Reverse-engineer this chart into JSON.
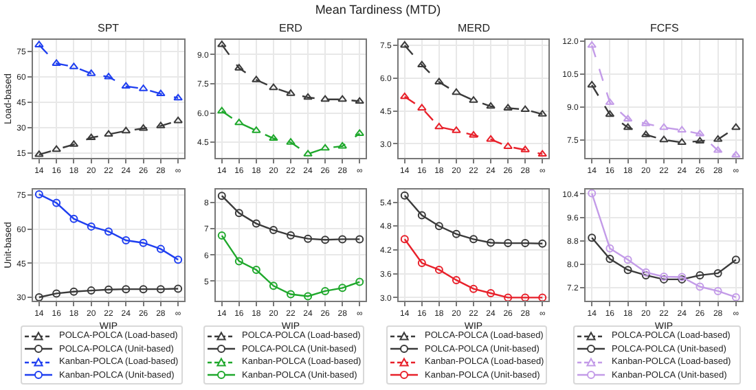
{
  "chart_data": [
    {
      "type": "line",
      "title": "SPT",
      "ylabel": "Load-based",
      "annotations": [
        "Mean Tardiness (MTD)"
      ],
      "categories": [
        "14",
        "16",
        "18",
        "20",
        "22",
        "24",
        "26",
        "28",
        "∞"
      ],
      "ylim": [
        12,
        82
      ],
      "yticks": [
        15,
        30,
        45,
        60,
        75
      ],
      "grid": true,
      "legend": "bottom",
      "series": [
        {
          "name": "POLCA-POLCA (Load-based)",
          "color": "#3a3a3a",
          "marker": "triangle",
          "line_style": "dashed",
          "values": [
            14,
            17,
            20,
            24,
            26,
            28,
            29.5,
            31,
            34
          ]
        },
        {
          "name": "Kanban-POLCA (Load-based)",
          "color": "#1f3ff0",
          "marker": "triangle",
          "line_style": "dashed",
          "values": [
            79,
            68,
            66,
            62,
            60,
            54.5,
            53,
            50,
            47.5
          ]
        }
      ]
    },
    {
      "type": "line",
      "title": "ERD",
      "categories": [
        "14",
        "16",
        "18",
        "20",
        "22",
        "24",
        "26",
        "28",
        "∞"
      ],
      "ylim": [
        3.7,
        9.75
      ],
      "yticks": [
        4.5,
        {
          "value": 6,
          "label": "6.0"
        },
        7.5,
        {
          "value": 9,
          "label": "9.0"
        }
      ],
      "grid": true,
      "legend": "bottom",
      "series": [
        {
          "name": "POLCA-POLCA (Load-based)",
          "color": "#3a3a3a",
          "marker": "triangle",
          "line_style": "dashed",
          "values": [
            9.5,
            8.3,
            7.7,
            7.3,
            7,
            6.8,
            6.7,
            6.7,
            6.6
          ]
        },
        {
          "name": "Kanban-POLCA (Load-based)",
          "color": "#1fa82c",
          "marker": "triangle",
          "line_style": "dashed",
          "values": [
            6.1,
            5.5,
            5.1,
            4.7,
            4.5,
            3.9,
            4.2,
            4.3,
            4.95
          ]
        }
      ]
    },
    {
      "type": "line",
      "title": "MERD",
      "categories": [
        "14",
        "16",
        "18",
        "20",
        "22",
        "24",
        "26",
        "28",
        "∞"
      ],
      "ylim": [
        2.35,
        7.75
      ],
      "yticks": [
        {
          "value": 3,
          "label": "3.0"
        },
        4.5,
        {
          "value": 6,
          "label": "6.0"
        },
        7.5
      ],
      "grid": true,
      "legend": "bottom",
      "series": [
        {
          "name": "POLCA-POLCA (Load-based)",
          "color": "#3a3a3a",
          "marker": "triangle",
          "line_style": "dashed",
          "values": [
            7.5,
            6.6,
            5.82,
            5.34,
            4.98,
            4.71,
            4.63,
            4.56,
            4.35
          ]
        },
        {
          "name": "Kanban-POLCA (Load-based)",
          "color": "#e8202a",
          "marker": "triangle",
          "line_style": "dashed",
          "values": [
            5.15,
            4.63,
            3.77,
            3.6,
            3.39,
            3.2,
            2.87,
            2.72,
            2.52
          ]
        }
      ]
    },
    {
      "type": "line",
      "title": "FCFS",
      "categories": [
        "14",
        "16",
        "18",
        "20",
        "22",
        "24",
        "26",
        "28",
        "∞"
      ],
      "ylim": [
        6.7,
        12.05
      ],
      "yticks": [
        7.5,
        {
          "value": 9,
          "label": "9.0"
        },
        10.5,
        {
          "value": 12,
          "label": "12.0"
        }
      ],
      "grid": true,
      "legend": "bottom",
      "series": [
        {
          "name": "POLCA-POLCA (Load-based)",
          "color": "#3a3a3a",
          "marker": "triangle",
          "line_style": "dashed",
          "values": [
            10,
            8.67,
            8.08,
            7.75,
            7.52,
            7.4,
            7.46,
            7.54,
            8.08
          ]
        },
        {
          "name": "Kanban-POLCA (Load-based)",
          "color": "#c39be8",
          "marker": "triangle",
          "line_style": "dashed",
          "values": [
            11.8,
            9.21,
            8.46,
            8.25,
            8.08,
            7.96,
            7.79,
            7.04,
            6.83
          ]
        }
      ]
    },
    {
      "type": "line",
      "xlabel": "WIP",
      "ylabel": "Unit-based",
      "categories": [
        "14",
        "16",
        "18",
        "20",
        "22",
        "24",
        "26",
        "28",
        "∞"
      ],
      "ylim": [
        28.5,
        77.5
      ],
      "yticks": [
        30,
        45,
        60,
        75
      ],
      "grid": true,
      "legend": "bottom",
      "series": [
        {
          "name": "POLCA-POLCA (Unit-based)",
          "color": "#3a3a3a",
          "marker": "circle",
          "line_style": "solid",
          "values": [
            30,
            31.7,
            32.5,
            33,
            33.4,
            33.6,
            33.6,
            33.6,
            33.8
          ]
        },
        {
          "name": "Kanban-POLCA (Unit-based)",
          "color": "#1f3ff0",
          "marker": "circle",
          "line_style": "solid",
          "values": [
            75.4,
            71.6,
            64.6,
            61.2,
            59,
            55.1,
            54,
            51.3,
            46.6
          ]
        }
      ]
    },
    {
      "type": "line",
      "xlabel": "WIP",
      "categories": [
        "14",
        "16",
        "18",
        "20",
        "22",
        "24",
        "26",
        "28",
        "∞"
      ],
      "ylim": [
        4.25,
        8.5
      ],
      "yticks": [
        5,
        6,
        7,
        8
      ],
      "grid": true,
      "legend": "bottom",
      "series": [
        {
          "name": "POLCA-POLCA (Unit-based)",
          "color": "#3a3a3a",
          "marker": "circle",
          "line_style": "solid",
          "values": [
            8.26,
            7.6,
            7.2,
            6.95,
            6.75,
            6.62,
            6.58,
            6.6,
            6.6
          ]
        },
        {
          "name": "Kanban-POLCA (Unit-based)",
          "color": "#1fa82c",
          "marker": "circle",
          "line_style": "solid",
          "values": [
            6.74,
            5.76,
            5.43,
            4.82,
            4.5,
            4.42,
            4.62,
            4.74,
            4.97
          ]
        }
      ]
    },
    {
      "type": "line",
      "xlabel": "WIP",
      "categories": [
        "14",
        "16",
        "18",
        "20",
        "22",
        "24",
        "26",
        "28",
        "∞"
      ],
      "ylim": [
        2.92,
        5.72
      ],
      "yticks": [
        {
          "value": 3,
          "label": "3.0"
        },
        3.6,
        4.2,
        4.8,
        5.4
      ],
      "grid": true,
      "legend": "bottom",
      "series": [
        {
          "name": "POLCA-POLCA (Unit-based)",
          "color": "#3a3a3a",
          "marker": "circle",
          "line_style": "solid",
          "values": [
            5.57,
            5.07,
            4.8,
            4.6,
            4.47,
            4.38,
            4.37,
            4.37,
            4.36
          ]
        },
        {
          "name": "Kanban-POLCA (Unit-based)",
          "color": "#e8202a",
          "marker": "circle",
          "line_style": "solid",
          "values": [
            4.47,
            3.87,
            3.7,
            3.44,
            3.22,
            3.11,
            3,
            3,
            3
          ]
        }
      ]
    },
    {
      "type": "line",
      "xlabel": "WIP",
      "categories": [
        "14",
        "16",
        "18",
        "20",
        "22",
        "24",
        "26",
        "28",
        "∞"
      ],
      "ylim": [
        6.75,
        10.55
      ],
      "yticks": [
        7.2,
        {
          "value": 8,
          "label": "8.0"
        },
        8.8,
        9.6,
        10.4
      ],
      "grid": true,
      "legend": "bottom",
      "series": [
        {
          "name": "POLCA-POLCA (Unit-based)",
          "color": "#3a3a3a",
          "marker": "circle",
          "line_style": "solid",
          "values": [
            8.9,
            8.18,
            7.8,
            7.62,
            7.48,
            7.48,
            7.62,
            7.69,
            8.15
          ]
        },
        {
          "name": "Kanban-POLCA (Unit-based)",
          "color": "#c39be8",
          "marker": "circle",
          "line_style": "solid",
          "values": [
            10.42,
            8.54,
            8.15,
            7.72,
            7.57,
            7.56,
            7.23,
            7.08,
            6.87
          ]
        }
      ]
    }
  ]
}
